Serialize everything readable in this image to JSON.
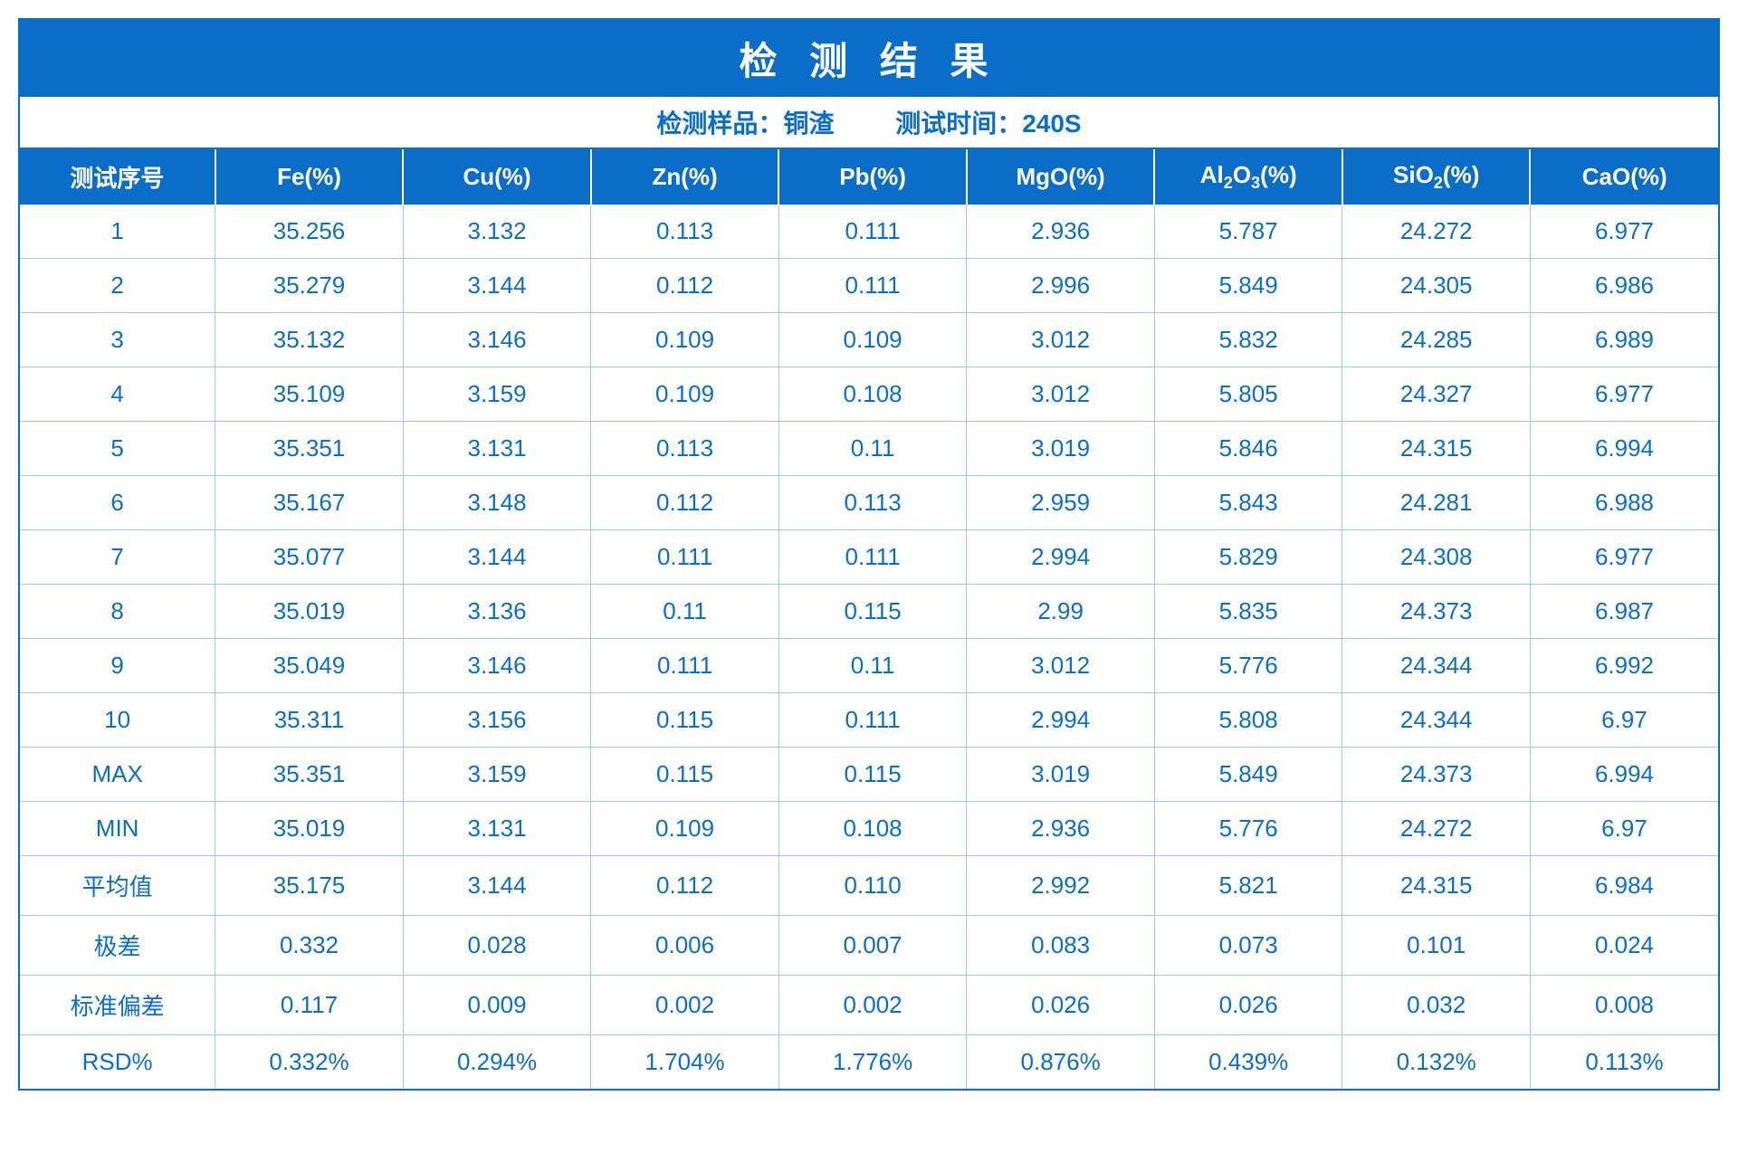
{
  "table": {
    "title": "检 测 结 果",
    "subtitle_sample_label": "检测样品：",
    "subtitle_sample_value": "铜渣",
    "subtitle_time_label": "测试时间：",
    "subtitle_time_value": "240S",
    "colors": {
      "header_bg": "#0a6ec9",
      "header_text": "#ffffff",
      "cell_text": "#0a6ec9",
      "cell_bg": "#ffffff",
      "border": "#9cc9ef",
      "outer_border": "#0a6ec9"
    },
    "fontsize": {
      "title": 42,
      "subtitle": 28,
      "header": 26,
      "cell": 26
    },
    "columns": [
      {
        "label": "测试序号",
        "key": "seq"
      },
      {
        "label": "Fe(%)",
        "key": "fe"
      },
      {
        "label": "Cu(%)",
        "key": "cu"
      },
      {
        "label": "Zn(%)",
        "key": "zn"
      },
      {
        "label": "Pb(%)",
        "key": "pb"
      },
      {
        "label": "MgO(%)",
        "key": "mgo"
      },
      {
        "label_html": "Al<sub>2</sub>O<sub>3</sub>(%)",
        "label": "Al2O3(%)",
        "key": "al2o3"
      },
      {
        "label_html": "SiO<sub>2</sub>(%)",
        "label": "SiO2(%)",
        "key": "sio2"
      },
      {
        "label": "CaO(%)",
        "key": "cao"
      }
    ],
    "rows": [
      {
        "seq": "1",
        "fe": "35.256",
        "cu": "3.132",
        "zn": "0.113",
        "pb": "0.111",
        "mgo": "2.936",
        "al2o3": "5.787",
        "sio2": "24.272",
        "cao": "6.977"
      },
      {
        "seq": "2",
        "fe": "35.279",
        "cu": "3.144",
        "zn": "0.112",
        "pb": "0.111",
        "mgo": "2.996",
        "al2o3": "5.849",
        "sio2": "24.305",
        "cao": "6.986"
      },
      {
        "seq": "3",
        "fe": "35.132",
        "cu": "3.146",
        "zn": "0.109",
        "pb": "0.109",
        "mgo": "3.012",
        "al2o3": "5.832",
        "sio2": "24.285",
        "cao": "6.989"
      },
      {
        "seq": "4",
        "fe": "35.109",
        "cu": "3.159",
        "zn": "0.109",
        "pb": "0.108",
        "mgo": "3.012",
        "al2o3": "5.805",
        "sio2": "24.327",
        "cao": "6.977"
      },
      {
        "seq": "5",
        "fe": "35.351",
        "cu": "3.131",
        "zn": "0.113",
        "pb": "0.11",
        "mgo": "3.019",
        "al2o3": "5.846",
        "sio2": "24.315",
        "cao": "6.994"
      },
      {
        "seq": "6",
        "fe": "35.167",
        "cu": "3.148",
        "zn": "0.112",
        "pb": "0.113",
        "mgo": "2.959",
        "al2o3": "5.843",
        "sio2": "24.281",
        "cao": "6.988"
      },
      {
        "seq": "7",
        "fe": "35.077",
        "cu": "3.144",
        "zn": "0.111",
        "pb": "0.111",
        "mgo": "2.994",
        "al2o3": "5.829",
        "sio2": "24.308",
        "cao": "6.977"
      },
      {
        "seq": "8",
        "fe": "35.019",
        "cu": "3.136",
        "zn": "0.11",
        "pb": "0.115",
        "mgo": "2.99",
        "al2o3": "5.835",
        "sio2": "24.373",
        "cao": "6.987"
      },
      {
        "seq": "9",
        "fe": "35.049",
        "cu": "3.146",
        "zn": "0.111",
        "pb": "0.11",
        "mgo": "3.012",
        "al2o3": "5.776",
        "sio2": "24.344",
        "cao": "6.992"
      },
      {
        "seq": "10",
        "fe": "35.311",
        "cu": "3.156",
        "zn": "0.115",
        "pb": "0.111",
        "mgo": "2.994",
        "al2o3": "5.808",
        "sio2": "24.344",
        "cao": "6.97"
      },
      {
        "seq": "MAX",
        "fe": "35.351",
        "cu": "3.159",
        "zn": "0.115",
        "pb": "0.115",
        "mgo": "3.019",
        "al2o3": "5.849",
        "sio2": "24.373",
        "cao": "6.994"
      },
      {
        "seq": "MIN",
        "fe": "35.019",
        "cu": "3.131",
        "zn": "0.109",
        "pb": "0.108",
        "mgo": "2.936",
        "al2o3": "5.776",
        "sio2": "24.272",
        "cao": "6.97"
      },
      {
        "seq": "平均值",
        "fe": "35.175",
        "cu": "3.144",
        "zn": "0.112",
        "pb": "0.110",
        "mgo": "2.992",
        "al2o3": "5.821",
        "sio2": "24.315",
        "cao": "6.984"
      },
      {
        "seq": "极差",
        "fe": "0.332",
        "cu": "0.028",
        "zn": "0.006",
        "pb": "0.007",
        "mgo": "0.083",
        "al2o3": "0.073",
        "sio2": "0.101",
        "cao": "0.024"
      },
      {
        "seq": "标准偏差",
        "fe": "0.117",
        "cu": "0.009",
        "zn": "0.002",
        "pb": "0.002",
        "mgo": "0.026",
        "al2o3": "0.026",
        "sio2": "0.032",
        "cao": "0.008"
      },
      {
        "seq": "RSD%",
        "fe": "0.332%",
        "cu": "0.294%",
        "zn": "1.704%",
        "pb": "1.776%",
        "mgo": "0.876%",
        "al2o3": "0.439%",
        "sio2": "0.132%",
        "cao": "0.113%"
      }
    ]
  }
}
